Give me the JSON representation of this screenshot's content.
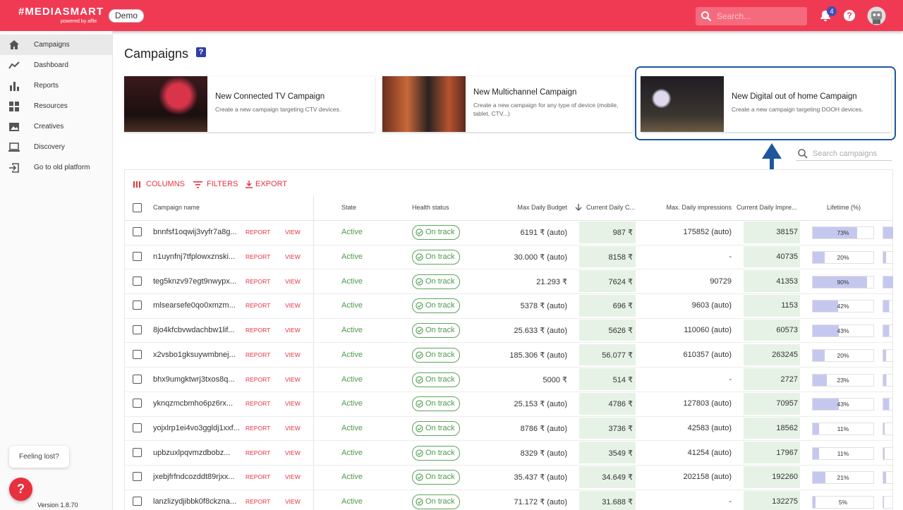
{
  "header": {
    "logo": "#MEDIASMART",
    "powered_by": "powered by affle",
    "badge": "Demo",
    "search_placeholder": "Search...",
    "notification_count": "4",
    "help": "?"
  },
  "sidebar": {
    "items": [
      "Campaigns",
      "Dashboard",
      "Reports",
      "Resources",
      "Creatives",
      "Discovery",
      "Go to old platform"
    ],
    "feeling_lost": "Feeling lost?",
    "help_button": "?",
    "version": "Version 1.8.70"
  },
  "page": {
    "title": "Campaigns",
    "title_help": "?"
  },
  "cards": [
    {
      "title": "New Connected TV Campaign",
      "description": "Create a new campaign targeting CTV devices."
    },
    {
      "title": "New Multichannel Campaign",
      "description": "Create a new campaign for any type of device (mobile, tablet, CTV...)"
    },
    {
      "title": "New Digital out of home Campaign",
      "description": "Create a new campaign targeting DOOH devices."
    }
  ],
  "search_campaigns": "Search campaigns",
  "toolbar": [
    "COLUMNS",
    "FILTERS",
    "EXPORT"
  ],
  "table": {
    "headers": [
      "Campaign name",
      "State",
      "Health status",
      "Max Daily Budget",
      "Current Daily C...",
      "Max. Daily impressions",
      "Current Daily Impre...",
      "Lifetime (%)"
    ],
    "rows": [
      [
        "bnnfsf1oqwij3vyfr7a8g...",
        "REPORT",
        "VIEW",
        "Active",
        "On track",
        "6191 ₹ (auto)",
        "987 ₹",
        "175852 (auto)",
        "38157",
        "73%"
      ],
      [
        "n1uynfnj7tfplowxznski...",
        "REPORT",
        "VIEW",
        "Active",
        "On track",
        "30.000 ₹ (auto)",
        "8158 ₹",
        "-",
        "40735",
        "20%"
      ],
      [
        "teg5knzv97egt9nwypx...",
        "REPORT",
        "VIEW",
        "Active",
        "On track",
        "21.293 ₹",
        "7624 ₹",
        "90729",
        "41353",
        "90%"
      ],
      [
        "mlsearsefe0qo0xmzm...",
        "REPORT",
        "VIEW",
        "Active",
        "On track",
        "5378 ₹ (auto)",
        "696 ₹",
        "9603 (auto)",
        "1153",
        "42%"
      ],
      [
        "8jo4kfcbvwdachbw1lif...",
        "REPORT",
        "VIEW",
        "Active",
        "On track",
        "25.633 ₹ (auto)",
        "5626 ₹",
        "110060 (auto)",
        "60573",
        "43%"
      ],
      [
        "x2vsbo1gksuywmbnej...",
        "REPORT",
        "VIEW",
        "Active",
        "On track",
        "185.306 ₹ (auto)",
        "56.077 ₹",
        "610357 (auto)",
        "263245",
        "20%"
      ],
      [
        "bhx9umgktwrj3txos8q...",
        "REPORT",
        "VIEW",
        "Active",
        "On track",
        "5000 ₹",
        "514 ₹",
        "-",
        "2727",
        "23%"
      ],
      [
        "yknqzmcbmho6pz6rx...",
        "REPORT",
        "VIEW",
        "Active",
        "On track",
        "25.153 ₹ (auto)",
        "4786 ₹",
        "127803 (auto)",
        "70957",
        "43%"
      ],
      [
        "yojxlrp1ei4vo3ggldj1xxf...",
        "REPORT",
        "VIEW",
        "Active",
        "On track",
        "8786 ₹ (auto)",
        "3736 ₹",
        "42583 (auto)",
        "18562",
        "11%"
      ],
      [
        "upbzuxlpqvmzdbobz...",
        "REPORT",
        "VIEW",
        "Active",
        "On track",
        "8329 ₹ (auto)",
        "3549 ₹",
        "41254 (auto)",
        "17967",
        "11%"
      ],
      [
        "jxebjfrfndcozddt89rjxx...",
        "REPORT",
        "VIEW",
        "Active",
        "On track",
        "35.437 ₹ (auto)",
        "34.649 ₹",
        "202158 (auto)",
        "192260",
        "21%"
      ],
      [
        "lanzlizydjibbk0f8ckzna...",
        "REPORT",
        "VIEW",
        "Active",
        "On track",
        "71.172 ₹ (auto)",
        "31.688 ₹",
        "-",
        "132275",
        "5%"
      ]
    ]
  }
}
